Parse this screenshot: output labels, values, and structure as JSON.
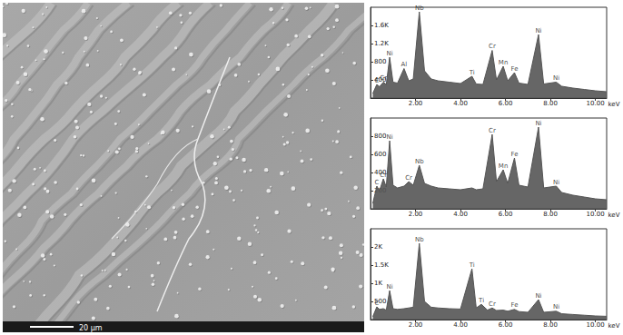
{
  "image": {
    "scale_bar": "20 μm"
  },
  "chart_data": [
    {
      "type": "line",
      "x_label": "keV",
      "color": "#555555",
      "xlim": [
        0,
        10.5
      ],
      "xticks": [
        {
          "value": 2,
          "label": "2.00"
        },
        {
          "value": 4,
          "label": "4.00"
        },
        {
          "value": 6,
          "label": "6.00"
        },
        {
          "value": 8,
          "label": "8.00"
        },
        {
          "value": 10,
          "label": "10.00"
        }
      ],
      "ylim": [
        0,
        2000
      ],
      "yticks": [
        400,
        800,
        {
          "value": 1200,
          "label": "1.2K"
        },
        {
          "value": 1600,
          "label": "1.6K"
        }
      ],
      "x": [
        0.1,
        0.28,
        0.4,
        0.57,
        0.7,
        0.85,
        1.0,
        1.2,
        1.49,
        1.7,
        1.9,
        2.17,
        2.4,
        2.7,
        3.0,
        3.5,
        4.0,
        4.51,
        4.7,
        5.0,
        5.41,
        5.6,
        5.9,
        6.1,
        6.4,
        6.6,
        7.0,
        7.47,
        7.7,
        8.26,
        8.5,
        9.0,
        9.5,
        10.0,
        10.5
      ],
      "values": [
        100,
        300,
        250,
        350,
        300,
        900,
        350,
        330,
        650,
        380,
        420,
        1900,
        600,
        420,
        380,
        350,
        320,
        480,
        310,
        300,
        1050,
        400,
        700,
        380,
        560,
        330,
        300,
        1400,
        310,
        350,
        260,
        220,
        190,
        160,
        140
      ],
      "annotations": [
        {
          "x": 0.28,
          "y": 300,
          "text": "C"
        },
        {
          "x": 0.57,
          "y": 350,
          "text": "Cr"
        },
        {
          "x": 0.85,
          "y": 900,
          "text": "Ni"
        },
        {
          "x": 1.49,
          "y": 650,
          "text": "Al"
        },
        {
          "x": 2.17,
          "y": 1900,
          "text": "Nb"
        },
        {
          "x": 4.51,
          "y": 480,
          "text": "Ti"
        },
        {
          "x": 5.41,
          "y": 1050,
          "text": "Cr"
        },
        {
          "x": 5.9,
          "y": 700,
          "text": "Mn"
        },
        {
          "x": 6.4,
          "y": 560,
          "text": "Fe"
        },
        {
          "x": 7.47,
          "y": 1400,
          "text": "Ni"
        },
        {
          "x": 8.26,
          "y": 350,
          "text": "Ni"
        }
      ]
    },
    {
      "type": "line",
      "x_label": "keV",
      "color": "#555555",
      "xlim": [
        0,
        10.5
      ],
      "xticks": [
        {
          "value": 2,
          "label": "2.00"
        },
        {
          "value": 4,
          "label": "4.00"
        },
        {
          "value": 6,
          "label": "6.00"
        },
        {
          "value": 8,
          "label": "8.00"
        },
        {
          "value": 10,
          "label": "10.00"
        }
      ],
      "ylim": [
        0,
        1000
      ],
      "yticks": [
        200,
        400,
        600,
        800
      ],
      "x": [
        0.1,
        0.28,
        0.4,
        0.57,
        0.7,
        0.85,
        1.0,
        1.2,
        1.49,
        1.7,
        1.9,
        2.17,
        2.4,
        2.7,
        3.0,
        3.5,
        4.0,
        4.51,
        4.7,
        5.0,
        5.41,
        5.6,
        5.9,
        6.1,
        6.4,
        6.6,
        7.0,
        7.47,
        7.7,
        8.26,
        8.5,
        9.0,
        9.5,
        10.0,
        10.5
      ],
      "values": [
        60,
        250,
        200,
        330,
        240,
        750,
        260,
        230,
        250,
        300,
        260,
        480,
        280,
        250,
        230,
        220,
        210,
        230,
        210,
        220,
        820,
        300,
        430,
        280,
        560,
        260,
        240,
        900,
        230,
        250,
        180,
        150,
        130,
        110,
        100
      ],
      "annotations": [
        {
          "x": 0.28,
          "y": 250,
          "text": "C"
        },
        {
          "x": 0.57,
          "y": 330,
          "text": "Cr"
        },
        {
          "x": 0.85,
          "y": 750,
          "text": "Ni"
        },
        {
          "x": 1.7,
          "y": 300,
          "text": "Cr"
        },
        {
          "x": 2.17,
          "y": 480,
          "text": "Nb"
        },
        {
          "x": 5.41,
          "y": 820,
          "text": "Cr"
        },
        {
          "x": 5.9,
          "y": 430,
          "text": "Mn"
        },
        {
          "x": 6.4,
          "y": 560,
          "text": "Fe"
        },
        {
          "x": 7.47,
          "y": 900,
          "text": "Ni"
        },
        {
          "x": 8.26,
          "y": 250,
          "text": "Ni"
        }
      ]
    },
    {
      "type": "line",
      "x_label": "keV",
      "color": "#555555",
      "xlim": [
        0,
        10.5
      ],
      "xticks": [
        {
          "value": 2,
          "label": "2.00"
        },
        {
          "value": 4,
          "label": "4.00"
        },
        {
          "value": 6,
          "label": "6.00"
        },
        {
          "value": 8,
          "label": "8.00"
        },
        {
          "value": 10,
          "label": "10.00"
        }
      ],
      "ylim": [
        0,
        2500
      ],
      "yticks": [
        500,
        {
          "value": 1000,
          "label": "1K"
        },
        {
          "value": 1500,
          "label": "1.5K"
        },
        {
          "value": 2000,
          "label": "2K"
        }
      ],
      "x": [
        0.1,
        0.28,
        0.4,
        0.57,
        0.7,
        0.85,
        1.0,
        1.2,
        1.49,
        1.7,
        1.9,
        2.17,
        2.4,
        2.7,
        3.0,
        3.5,
        4.0,
        4.51,
        4.7,
        4.93,
        5.2,
        5.41,
        5.6,
        5.9,
        6.1,
        6.4,
        6.6,
        7.0,
        7.47,
        7.7,
        8.26,
        8.5,
        9.0,
        9.5,
        10.0,
        10.5
      ],
      "values": [
        80,
        350,
        280,
        300,
        260,
        800,
        300,
        280,
        300,
        320,
        340,
        2100,
        500,
        340,
        320,
        300,
        290,
        1400,
        320,
        420,
        260,
        320,
        250,
        260,
        230,
        280,
        220,
        200,
        550,
        200,
        230,
        160,
        140,
        120,
        100,
        90
      ],
      "annotations": [
        {
          "x": 0.28,
          "y": 350,
          "text": "C"
        },
        {
          "x": 0.85,
          "y": 800,
          "text": "Ni"
        },
        {
          "x": 2.17,
          "y": 2100,
          "text": "Nb"
        },
        {
          "x": 4.51,
          "y": 1400,
          "text": "Ti"
        },
        {
          "x": 4.93,
          "y": 420,
          "text": "Ti"
        },
        {
          "x": 5.41,
          "y": 320,
          "text": "Cr"
        },
        {
          "x": 6.4,
          "y": 280,
          "text": "Fe"
        },
        {
          "x": 7.47,
          "y": 550,
          "text": "Ni"
        },
        {
          "x": 8.26,
          "y": 230,
          "text": "Ni"
        }
      ]
    }
  ]
}
